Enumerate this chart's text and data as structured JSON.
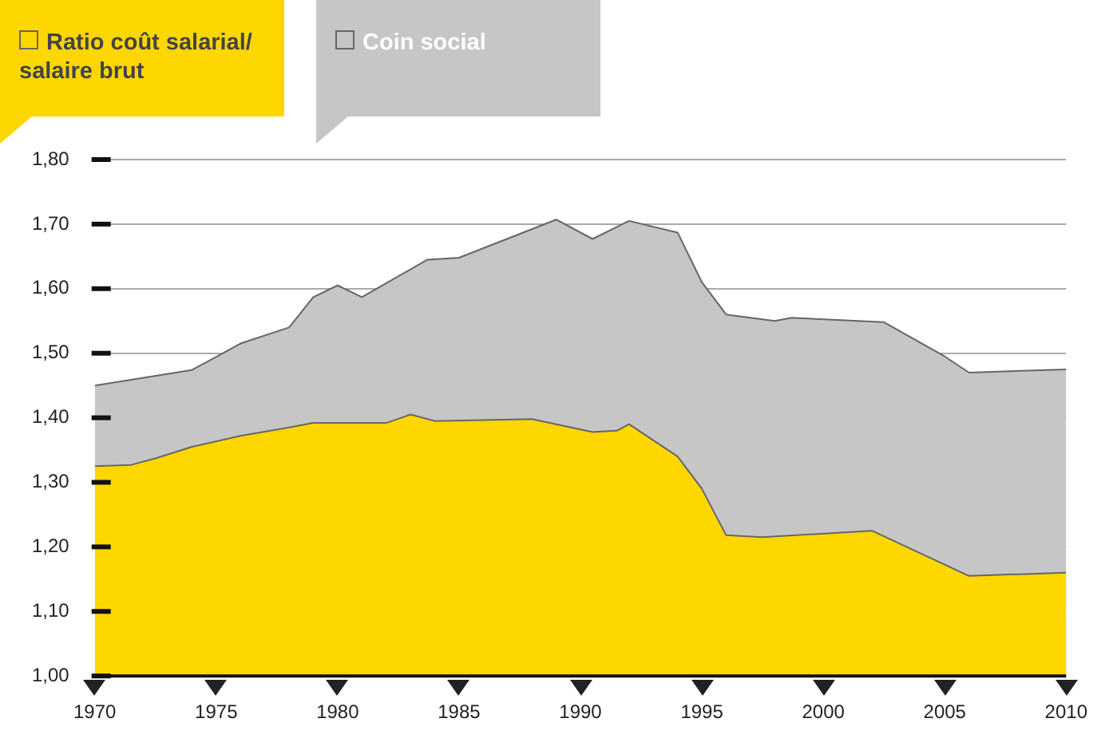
{
  "chart_data": {
    "type": "area",
    "xlim": [
      1970,
      2010
    ],
    "xticks": [
      1970,
      1975,
      1980,
      1985,
      1990,
      1995,
      2000,
      2005,
      2010
    ],
    "ylim": [
      1,
      1.8
    ],
    "yticks": [
      {
        "value": 1,
        "label": "1,00"
      },
      {
        "value": 1.1,
        "label": "1,10"
      },
      {
        "value": 1.2,
        "label": "1,20"
      },
      {
        "value": 1.3,
        "label": "1,30"
      },
      {
        "value": 1.4,
        "label": "1,40"
      },
      {
        "value": 1.5,
        "label": "1,50"
      },
      {
        "value": 1.6,
        "label": "1,60"
      },
      {
        "value": 1.7,
        "label": "1,70"
      },
      {
        "value": 1.8,
        "label": "1,80"
      }
    ],
    "grid": "y",
    "legend": "top left",
    "marker": "none",
    "series": [
      {
        "name": "Coin social",
        "color": "#c6c6c6",
        "x": [
          1970,
          1974,
          1976,
          1978,
          1979,
          1980,
          1981,
          1983.7,
          1985,
          1989,
          1990.5,
          1992,
          1994,
          1995,
          1996,
          1998,
          1998.7,
          2002.5,
          2005,
          2006,
          2010
        ],
        "values": [
          1.45,
          1.474,
          1.515,
          1.54,
          1.587,
          1.605,
          1.587,
          1.645,
          1.648,
          1.707,
          1.677,
          1.705,
          1.687,
          1.61,
          1.56,
          1.55,
          1.555,
          1.548,
          1.495,
          1.47,
          1.475
        ]
      },
      {
        "name": "Ratio coût salarial/ salaire brut",
        "color": "#ffd700",
        "x": [
          1970,
          1971.5,
          1972.5,
          1974,
          1976,
          1978,
          1979,
          1982,
          1983,
          1984,
          1988,
          1989,
          1990.5,
          1991.5,
          1992,
          1994,
          1995,
          1996,
          1997.5,
          2002,
          2006,
          2010
        ],
        "values": [
          1.325,
          1.327,
          1.337,
          1.355,
          1.372,
          1.385,
          1.392,
          1.392,
          1.405,
          1.395,
          1.398,
          1.39,
          1.378,
          1.38,
          1.39,
          1.34,
          1.29,
          1.218,
          1.215,
          1.225,
          1.155,
          1.16
        ]
      }
    ]
  }
}
